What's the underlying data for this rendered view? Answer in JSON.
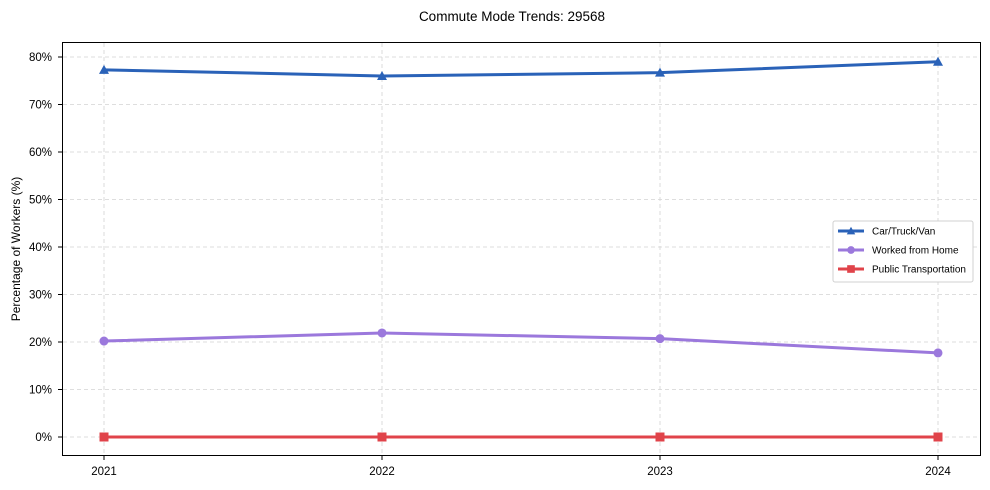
{
  "chart_data": {
    "type": "line",
    "title": "Commute Mode Trends: 29568",
    "xlabel": "",
    "ylabel": "Percentage of Workers (%)",
    "x": [
      "2021",
      "2022",
      "2023",
      "2024"
    ],
    "yticks": [
      "0%",
      "10%",
      "20%",
      "30%",
      "40%",
      "50%",
      "60%",
      "70%",
      "80%"
    ],
    "ylim": [
      -3.6,
      83.5
    ],
    "grid": true,
    "legend_position": "center right",
    "series": [
      {
        "name": "Car/Truck/Van",
        "values": [
          77.3,
          76.0,
          76.7,
          79.0
        ],
        "color": "#2a62b8",
        "marker": "triangle"
      },
      {
        "name": "Worked from Home",
        "values": [
          20.2,
          21.9,
          20.7,
          17.7
        ],
        "color": "#9b78dc",
        "marker": "circle"
      },
      {
        "name": "Public Transportation",
        "values": [
          0.0,
          0.0,
          0.0,
          0.0
        ],
        "color": "#e0434a",
        "marker": "square"
      }
    ]
  }
}
